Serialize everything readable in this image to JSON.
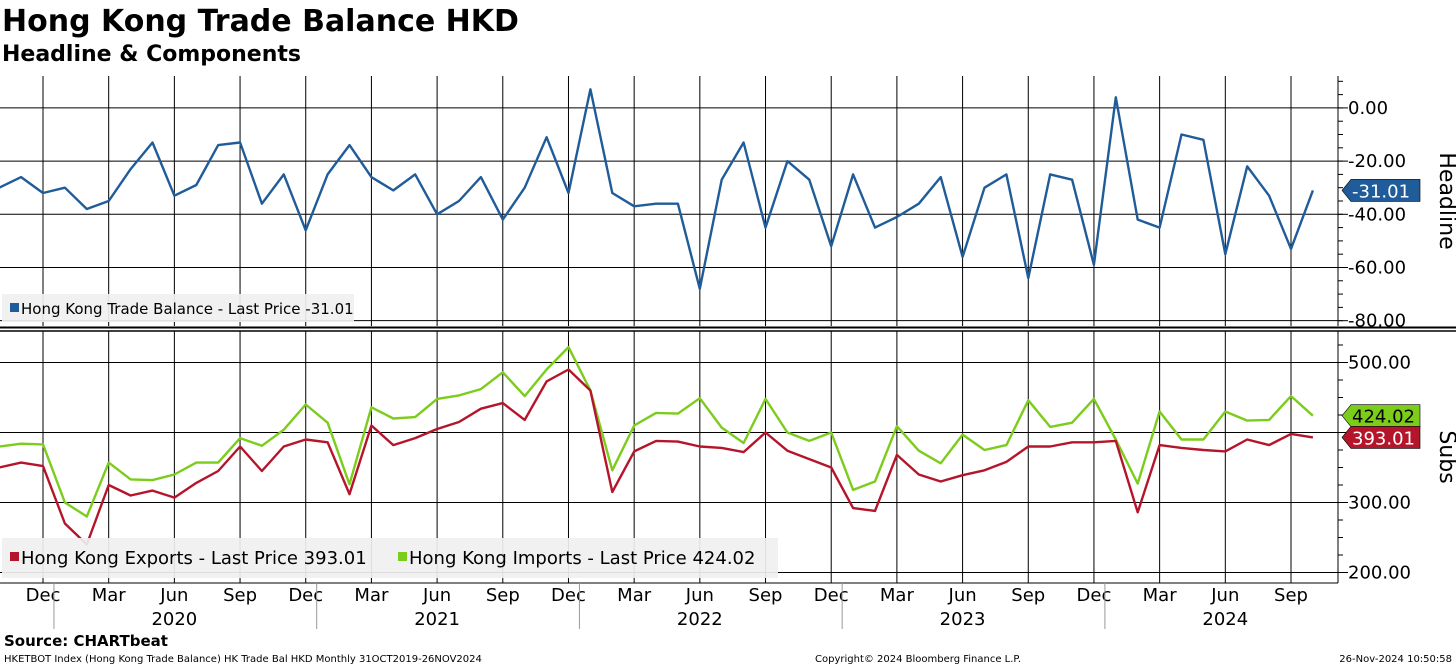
{
  "title": "Hong Kong Trade Balance HKD",
  "subtitle": "Headline & Components",
  "source": "Source: CHARTbeat",
  "footer": {
    "left": "HKETBOT Index (Hong Kong Trade Balance) HK Trade Bal HKD  Monthly 31OCT2019-26NOV2024",
    "middle": "Copyright© 2024 Bloomberg Finance L.P.",
    "right": "26-Nov-2024 10:50:58"
  },
  "colors": {
    "balance": "#1f5c99",
    "exports": "#b5152b",
    "imports": "#7ccc1c"
  },
  "chart_data": [
    {
      "type": "line",
      "panel": "top",
      "axis_title": "Headline",
      "x": [
        "2019-10",
        "2019-11",
        "2019-12",
        "2020-01",
        "2020-02",
        "2020-03",
        "2020-04",
        "2020-05",
        "2020-06",
        "2020-07",
        "2020-08",
        "2020-09",
        "2020-10",
        "2020-11",
        "2020-12",
        "2021-01",
        "2021-02",
        "2021-03",
        "2021-04",
        "2021-05",
        "2021-06",
        "2021-07",
        "2021-08",
        "2021-09",
        "2021-10",
        "2021-11",
        "2021-12",
        "2022-01",
        "2022-02",
        "2022-03",
        "2022-04",
        "2022-05",
        "2022-06",
        "2022-07",
        "2022-08",
        "2022-09",
        "2022-10",
        "2022-11",
        "2022-12",
        "2023-01",
        "2023-02",
        "2023-03",
        "2023-04",
        "2023-05",
        "2023-06",
        "2023-07",
        "2023-08",
        "2023-09",
        "2023-10",
        "2023-11",
        "2023-12",
        "2024-01",
        "2024-02",
        "2024-03",
        "2024-04",
        "2024-05",
        "2024-06",
        "2024-07",
        "2024-08",
        "2024-09",
        "2024-10"
      ],
      "series": [
        {
          "name": "Hong Kong Trade Balance",
          "legend": "Hong Kong Trade Balance - Last Price -31.01",
          "values": [
            -30,
            -26,
            -32,
            -30,
            -38,
            -35,
            -23,
            -13,
            -33,
            -29,
            -14,
            -13,
            -36,
            -25,
            -46,
            -25,
            -14,
            -26,
            -31,
            -25,
            -40,
            -35,
            -26,
            -42,
            -30,
            -11,
            -32,
            7,
            -32,
            -37,
            -36,
            -36,
            -68,
            -27,
            -13,
            -45,
            -20,
            -27,
            -52,
            -25,
            -45,
            -41,
            -36,
            -26,
            -56,
            -30,
            -25,
            -64,
            -25,
            -27,
            -59,
            4,
            -42,
            -45,
            -10,
            -12,
            -55,
            -22,
            -33,
            -53,
            -31.01
          ],
          "last": -31.01,
          "last_label": "-31.01"
        }
      ],
      "ticks": [
        0,
        -20,
        -40,
        -60,
        -80
      ],
      "tick_labels": [
        "0.00",
        "-20.00",
        "-40.00",
        "-60.00",
        "-80.00"
      ],
      "ylim": [
        -82,
        12
      ]
    },
    {
      "type": "line",
      "panel": "bottom",
      "axis_title": "Subs",
      "x": [
        "2019-10",
        "2019-11",
        "2019-12",
        "2020-01",
        "2020-02",
        "2020-03",
        "2020-04",
        "2020-05",
        "2020-06",
        "2020-07",
        "2020-08",
        "2020-09",
        "2020-10",
        "2020-11",
        "2020-12",
        "2021-01",
        "2021-02",
        "2021-03",
        "2021-04",
        "2021-05",
        "2021-06",
        "2021-07",
        "2021-08",
        "2021-09",
        "2021-10",
        "2021-11",
        "2021-12",
        "2022-01",
        "2022-02",
        "2022-03",
        "2022-04",
        "2022-05",
        "2022-06",
        "2022-07",
        "2022-08",
        "2022-09",
        "2022-10",
        "2022-11",
        "2022-12",
        "2023-01",
        "2023-02",
        "2023-03",
        "2023-04",
        "2023-05",
        "2023-06",
        "2023-07",
        "2023-08",
        "2023-09",
        "2023-10",
        "2023-11",
        "2023-12",
        "2024-01",
        "2024-02",
        "2024-03",
        "2024-04",
        "2024-05",
        "2024-06",
        "2024-07",
        "2024-08",
        "2024-09",
        "2024-10"
      ],
      "series": [
        {
          "name": "Hong Kong Exports",
          "legend": "Hong Kong Exports - Last Price 393.01",
          "values": [
            350,
            357,
            352,
            270,
            240,
            325,
            310,
            317,
            307,
            328,
            345,
            380,
            345,
            380,
            390,
            386,
            312,
            410,
            382,
            392,
            405,
            415,
            434,
            442,
            418,
            473,
            490,
            460,
            315,
            373,
            388,
            387,
            380,
            378,
            372,
            400,
            374,
            362,
            350,
            292,
            288,
            368,
            340,
            330,
            339,
            346,
            358,
            380,
            380,
            386,
            386,
            388,
            286,
            382,
            378,
            375,
            373,
            390,
            382,
            398,
            393.01
          ],
          "last": 393.01,
          "last_label": "393.01"
        },
        {
          "name": "Hong Kong Imports",
          "legend": "Hong Kong Imports - Last Price 424.02",
          "values": [
            380,
            384,
            383,
            300,
            280,
            357,
            333,
            332,
            340,
            357,
            357,
            392,
            381,
            404,
            440,
            414,
            326,
            436,
            420,
            422,
            448,
            453,
            462,
            486,
            452,
            490,
            522,
            460,
            346,
            410,
            428,
            427,
            449,
            407,
            385,
            448,
            400,
            388,
            400,
            318,
            330,
            409,
            374,
            356,
            397,
            375,
            382,
            446,
            408,
            414,
            448,
            390,
            327,
            430,
            390,
            390,
            430,
            417,
            418,
            452,
            424.02
          ],
          "last": 424.02,
          "last_label": "424.02"
        }
      ],
      "ticks": [
        500,
        400,
        300,
        200
      ],
      "tick_labels": [
        "500.00",
        "400.00",
        "300.00",
        "200.00"
      ],
      "ylim": [
        185,
        545
      ]
    }
  ],
  "x_axis": {
    "month_labels": [
      {
        "date": "2019-12",
        "label": "Dec"
      },
      {
        "date": "2020-03",
        "label": "Mar"
      },
      {
        "date": "2020-06",
        "label": "Jun"
      },
      {
        "date": "2020-09",
        "label": "Sep"
      },
      {
        "date": "2020-12",
        "label": "Dec"
      },
      {
        "date": "2021-03",
        "label": "Mar"
      },
      {
        "date": "2021-06",
        "label": "Jun"
      },
      {
        "date": "2021-09",
        "label": "Sep"
      },
      {
        "date": "2021-12",
        "label": "Dec"
      },
      {
        "date": "2022-03",
        "label": "Mar"
      },
      {
        "date": "2022-06",
        "label": "Jun"
      },
      {
        "date": "2022-09",
        "label": "Sep"
      },
      {
        "date": "2022-12",
        "label": "Dec"
      },
      {
        "date": "2023-03",
        "label": "Mar"
      },
      {
        "date": "2023-06",
        "label": "Jun"
      },
      {
        "date": "2023-09",
        "label": "Sep"
      },
      {
        "date": "2023-12",
        "label": "Dec"
      },
      {
        "date": "2024-03",
        "label": "Mar"
      },
      {
        "date": "2024-06",
        "label": "Jun"
      },
      {
        "date": "2024-09",
        "label": "Sep"
      }
    ],
    "year_labels": [
      {
        "date": "2020-06",
        "label": "2020"
      },
      {
        "date": "2021-06",
        "label": "2021"
      },
      {
        "date": "2022-06",
        "label": "2022"
      },
      {
        "date": "2023-06",
        "label": "2023"
      },
      {
        "date": "2024-06",
        "label": "2024"
      }
    ],
    "grid": true
  }
}
